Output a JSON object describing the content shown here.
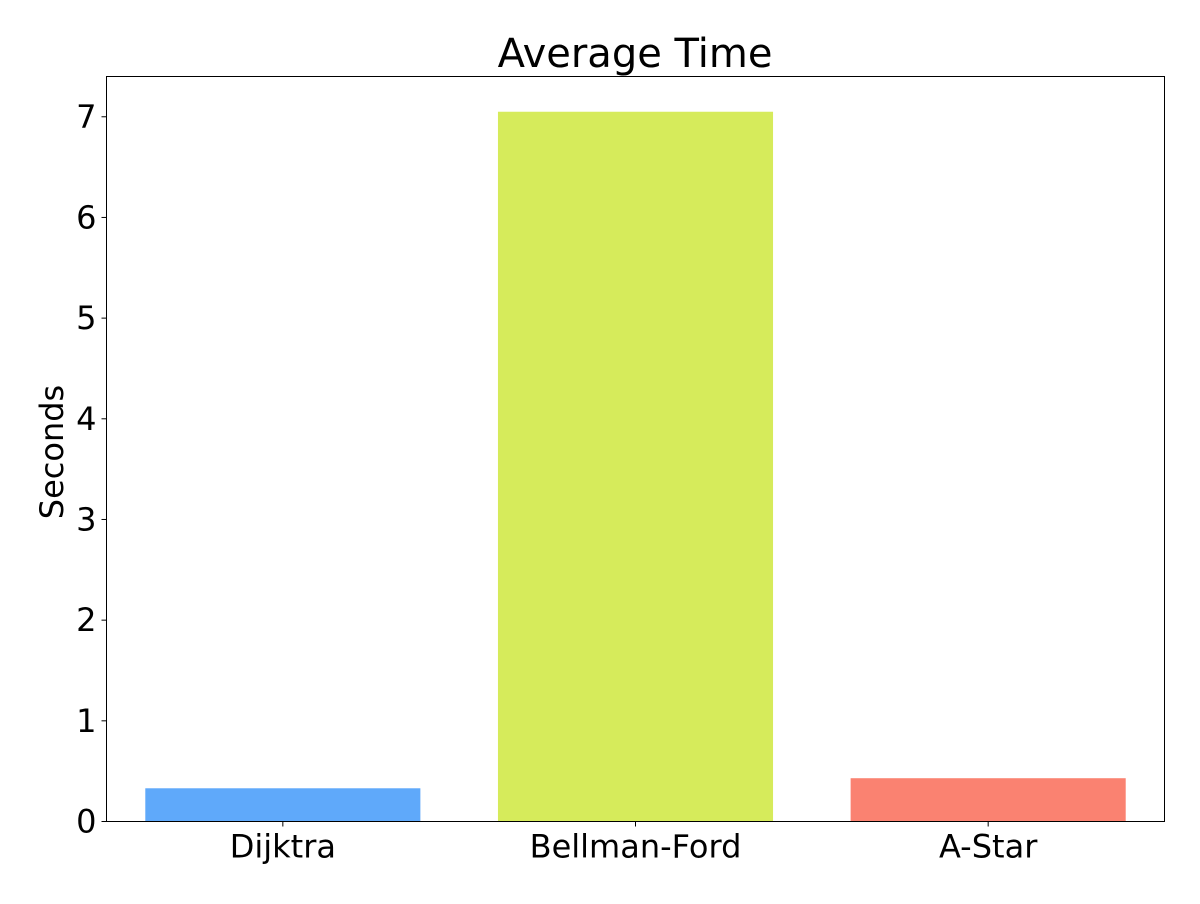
{
  "chart_data": {
    "type": "bar",
    "title": "Average Time",
    "xlabel": "",
    "ylabel": "Seconds",
    "categories": [
      "Dijktra",
      "Bellman-Ford",
      "A-Star"
    ],
    "values": [
      0.33,
      7.05,
      0.43
    ],
    "colors": [
      "#5fa9fa",
      "#d6eb5b",
      "#fa8271"
    ],
    "ylim": [
      0,
      7.4
    ],
    "yticks": [
      0,
      1,
      2,
      3,
      4,
      5,
      6,
      7
    ],
    "grid": false,
    "legend": "none"
  }
}
